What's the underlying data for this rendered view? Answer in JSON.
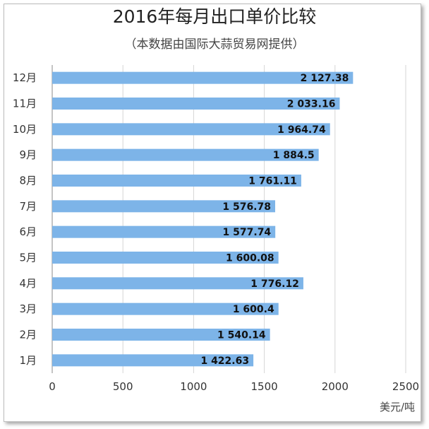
{
  "chart_data": {
    "type": "bar",
    "orientation": "horizontal",
    "title": "2016年每月出口单价比较",
    "subtitle": "（本数据由国际大蒜贸易网提供）",
    "categories": [
      "1月",
      "2月",
      "3月",
      "4月",
      "5月",
      "6月",
      "7月",
      "8月",
      "9月",
      "10月",
      "11月",
      "12月"
    ],
    "values": [
      1422.63,
      1540.14,
      1600.4,
      1776.12,
      1600.08,
      1577.74,
      1576.78,
      1761.11,
      1884.5,
      1964.74,
      2033.16,
      2127.38
    ],
    "value_labels": [
      "1 422.63",
      "1 540.14",
      "1 600.4",
      "1 776.12",
      "1 600.08",
      "1 577.74",
      "1 576.78",
      "1 761.11",
      "1 884.5",
      "1 964.74",
      "2 033.16",
      "2 127.38"
    ],
    "xlim": [
      0,
      2500
    ],
    "xticks": [
      "0",
      "500",
      "1000",
      "1500",
      "2000",
      "2500"
    ],
    "unit_label": "美元/吨",
    "grid": true,
    "bar_color": "#7db4e8"
  }
}
